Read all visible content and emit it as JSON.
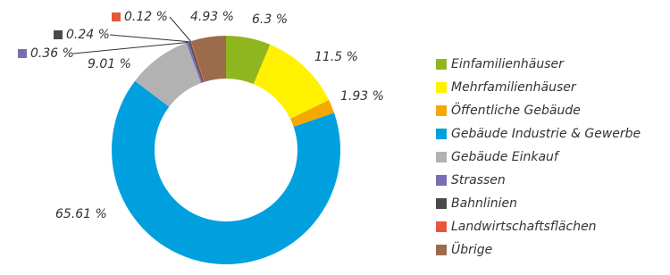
{
  "chart_data": {
    "type": "donut",
    "categories": [
      "Einfamilienhäuser",
      "Mehrfamilienhäuser",
      "Öffentliche Gebäude",
      "Gebäude Industrie & Gewerbe",
      "Gebäude Einkauf",
      "Strassen",
      "Bahnlinien",
      "Landwirtschaftsflächen",
      "Übrige"
    ],
    "values": [
      6.3,
      11.5,
      1.93,
      65.61,
      9.01,
      0.36,
      0.24,
      0.12,
      4.93
    ],
    "value_labels": [
      "6.3 %",
      "11.5 %",
      "1.93 %",
      "65.61 %",
      "9.01 %",
      "0.36 %",
      "0.24 %",
      "0.12 %",
      "4.93 %"
    ],
    "colors": [
      "#8fb61f",
      "#fff100",
      "#f5a800",
      "#00a0df",
      "#b2b2b2",
      "#7a6cb0",
      "#4a4a4a",
      "#e8563b",
      "#9c6b4c"
    ],
    "legend": "right"
  }
}
